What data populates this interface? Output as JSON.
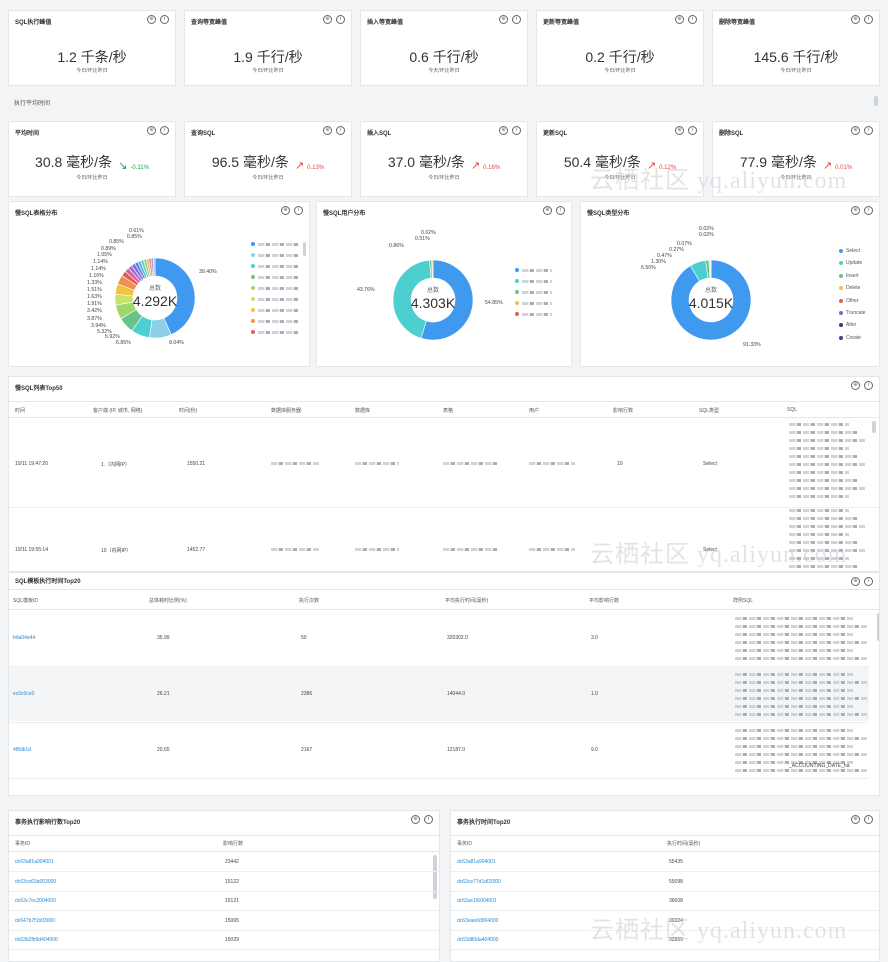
{
  "peaks": [
    {
      "title": "SQL执行峰值",
      "value": "1.2 千条/秒",
      "sub": "今日/环比昨日"
    },
    {
      "title": "查询等宽峰值",
      "value": "1.9 千行/秒",
      "sub": "今日/环比昨日"
    },
    {
      "title": "插入等宽峰值",
      "value": "0.6 千行/秒",
      "sub": "今天/环比昨日"
    },
    {
      "title": "更新等宽峰值",
      "value": "0.2 千行/秒",
      "sub": "今日/环比昨日"
    },
    {
      "title": "删除等宽峰值",
      "value": "145.6 千行/秒",
      "sub": "今日/环比昨日"
    }
  ],
  "avg_section_label": "执行平均时间",
  "avgs": [
    {
      "title": "平均时间",
      "value": "30.8 毫秒/条",
      "delta": "-0.11%",
      "dir": "down",
      "sub": "今日/环比昨日"
    },
    {
      "title": "查询SQL",
      "value": "96.5 毫秒/条",
      "delta": "0.13%",
      "dir": "up",
      "sub": "今日/环比昨日"
    },
    {
      "title": "插入SQL",
      "value": "37.0 毫秒/条",
      "delta": "0.16%",
      "dir": "up",
      "sub": "今日/环比昨日"
    },
    {
      "title": "更新SQL",
      "value": "50.4 毫秒/条",
      "delta": "0.12%",
      "dir": "up",
      "sub": "今日/环比昨日"
    },
    {
      "title": "删除SQL",
      "value": "77.9 毫秒/条",
      "delta": "0.01%",
      "dir": "up",
      "sub": "今日/环比昨日"
    }
  ],
  "donuts": {
    "table": {
      "title": "慢SQL表格分布",
      "center_label": "总数",
      "center_value": "4.292K"
    },
    "user": {
      "title": "慢SQL用户分布",
      "center_label": "总数",
      "center_value": "4.303K"
    },
    "type": {
      "title": "慢SQL类型分布",
      "center_label": "总数",
      "center_value": "4.015K",
      "legend": [
        "Select",
        "Update",
        "Insert",
        "Delete",
        "Other",
        "Truncate",
        "Alter",
        "Create"
      ]
    }
  },
  "chart_data": [
    {
      "type": "pie",
      "title": "慢SQL表格分布",
      "values": [
        39.4,
        8.04,
        6.85,
        5.92,
        5.32,
        3.94,
        3.87,
        3.42,
        1.91,
        1.63,
        1.51,
        1.33,
        1.16,
        1.14,
        1.14,
        1.05,
        0.89,
        0.85,
        0.85,
        0.61
      ],
      "labels": [
        "39.40%",
        "8.04%",
        "6.85%",
        "5.92%",
        "5.32%",
        "3.94%",
        "3.87%",
        "3.42%",
        "1.91%",
        "1.63%",
        "1.51%",
        "1.33%",
        "1.16%",
        "1.14%",
        "1.14%",
        "1.05%",
        "0.89%",
        "0.85%",
        "0.85%",
        "0.61%"
      ]
    },
    {
      "type": "pie",
      "title": "慢SQL用户分布",
      "values": [
        54.85,
        43.76,
        0.86,
        0.51,
        0.02
      ],
      "labels": [
        "54.85%",
        "43.76%",
        "0.86%",
        "0.51%",
        "0.02%"
      ]
    },
    {
      "type": "pie",
      "title": "慢SQL类型分布",
      "series_names": [
        "Select",
        "Update",
        "Insert",
        "Delete",
        "Other",
        "Truncate",
        "Alter",
        "Create"
      ],
      "values": [
        91.33,
        6.5,
        1.3,
        0.47,
        0.27,
        0.07,
        0.02,
        0.02
      ],
      "labels": [
        "91.33%",
        "6.50%",
        "1.30%",
        "0.47%",
        "0.27%",
        "0.07%",
        "0.02%",
        "0.02%"
      ]
    }
  ],
  "colors": {
    "blue": "#3f99ef",
    "teal": "#4dcfcf",
    "green": "#4fc07a",
    "yellow": "#f2c343",
    "red": "#e45c5c",
    "purple": "#8a5fd6",
    "navy": "#2e3f86",
    "orange": "#f0904a"
  },
  "slow_top50": {
    "title": "慢SQL列表Top50",
    "headers": [
      "时间",
      "客户端 (IP, 城市, 网络)",
      "时间(秒)",
      "数据库服务器",
      "数据库",
      "表格",
      "用户",
      "影响行数",
      "SQL类型",
      "SQL"
    ],
    "rows": [
      {
        "time": "10/11 19:47:20",
        "client": "1.（内网IP）",
        "secs": "1550.21",
        "rows": "10",
        "type": "Select"
      },
      {
        "time": "10/11 19:55:14",
        "client": "10（内网IP）",
        "secs": "1452.77",
        "rows": "",
        "type": "Select"
      }
    ]
  },
  "template_top20": {
    "title": "SQL模板执行时间Top20",
    "headers": [
      "SQL模板ID",
      "总体耗时比例(%)",
      "执行次数",
      "平均执行时间(毫秒)",
      "平均影响行数",
      "样例SQL"
    ],
    "rows": [
      {
        "id": "bda04e44",
        "ratio": "35.99",
        "count": "50",
        "avg": "320302.0",
        "rows": "3.0"
      },
      {
        "id": "ec0c0ce0",
        "ratio": "26.21",
        "count": "2386",
        "avg": "14044.0",
        "rows": "1.0"
      },
      {
        "id": "4f8db1d",
        "ratio": "20.65",
        "count": "2167",
        "avg": "12187.0",
        "rows": "9.0"
      }
    ],
    "sample_fragment": "_ACCOUNTING_DATE_ha"
  },
  "tx_rows": {
    "title": "事务执行影响行数Top20",
    "headers": [
      "事务ID",
      "影响行数"
    ],
    "rows": [
      {
        "id": "dc63a81a904001",
        "v": "23442"
      },
      {
        "id": "dc63ce63a003000",
        "v": "15122"
      },
      {
        "id": "dc63c7ec2004000",
        "v": "15121"
      },
      {
        "id": "dc647b7f1b03000",
        "v": "15065"
      },
      {
        "id": "dc63b2fb9d404000",
        "v": "15029"
      }
    ]
  },
  "tx_time": {
    "title": "事务执行时间Top20",
    "headers": [
      "事务ID",
      "执行时间(毫秒)"
    ],
    "rows": [
      {
        "id": "dc63a81a904001",
        "v": "55435"
      },
      {
        "id": "dc63ce77d1d02000",
        "v": "55098"
      },
      {
        "id": "dc63ac1f6004001",
        "v": "36608"
      },
      {
        "id": "dc63eae0d004000",
        "v": "36324"
      },
      {
        "id": "dc63d80da404000",
        "v": "32869"
      }
    ]
  },
  "watermark": "云栖社区 yq.aliyun.com"
}
